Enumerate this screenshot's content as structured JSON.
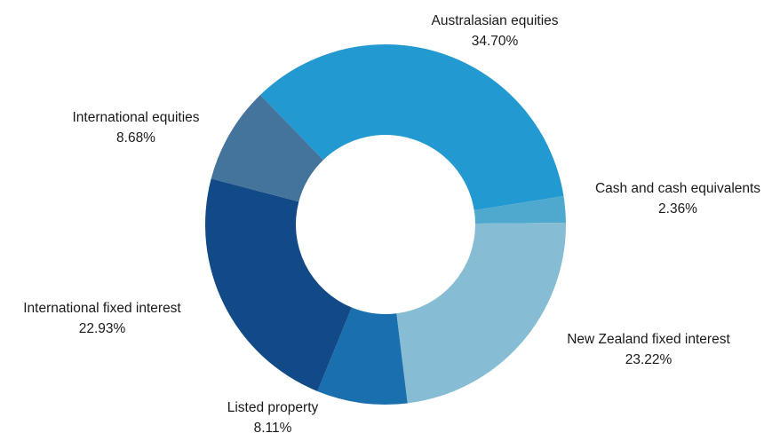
{
  "chart_data": {
    "type": "pie",
    "categories": [
      "Australasian equities",
      "Cash and cash equivalents",
      "New Zealand fixed interest",
      "Listed property",
      "International fixed interest",
      "International equities"
    ],
    "values": [
      34.7,
      2.36,
      23.22,
      8.11,
      22.93,
      8.68
    ],
    "value_labels": [
      "34.70%",
      "2.36%",
      "23.22%",
      "8.11%",
      "22.93%",
      "8.68%"
    ],
    "colors": [
      "#2399d1",
      "#4fa9cf",
      "#86bdd4",
      "#1a6fae",
      "#114a87",
      "#44739c"
    ]
  }
}
